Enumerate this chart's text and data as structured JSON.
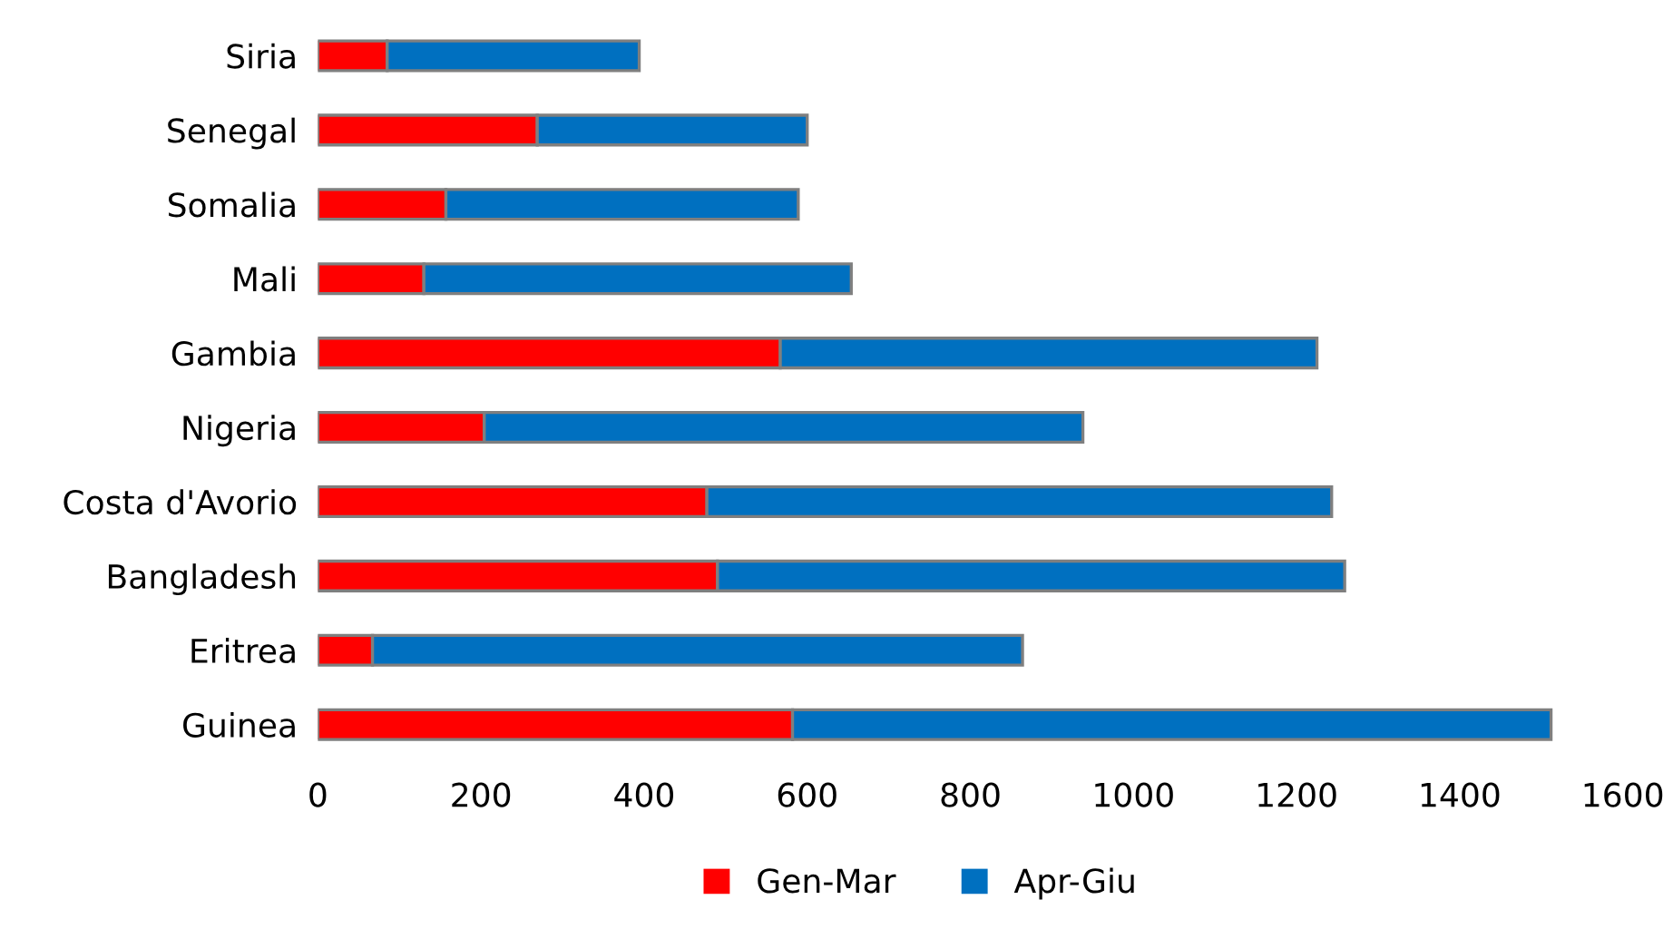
{
  "chart_data": {
    "type": "bar",
    "orientation": "horizontal",
    "stacked": true,
    "categories": [
      "Siria",
      "Senegal",
      "Somalia",
      "Mali",
      "Gambia",
      "Nigeria",
      "Costa d'Avorio",
      "Bangladesh",
      "Eritrea",
      "Guinea"
    ],
    "series": [
      {
        "name": "Gen-Mar",
        "color": "#ff0000",
        "values": [
          85,
          269,
          157,
          130,
          567,
          204,
          477,
          490,
          67,
          582
        ]
      },
      {
        "name": "Apr-Giu",
        "color": "#0070c0",
        "values": [
          309,
          331,
          432,
          524,
          658,
          734,
          766,
          769,
          797,
          930
        ]
      }
    ],
    "xlim": [
      0,
      1600
    ],
    "xticks": [
      0,
      200,
      400,
      600,
      800,
      1000,
      1200,
      1400,
      1600
    ],
    "grid": false,
    "legend": "bottom"
  }
}
